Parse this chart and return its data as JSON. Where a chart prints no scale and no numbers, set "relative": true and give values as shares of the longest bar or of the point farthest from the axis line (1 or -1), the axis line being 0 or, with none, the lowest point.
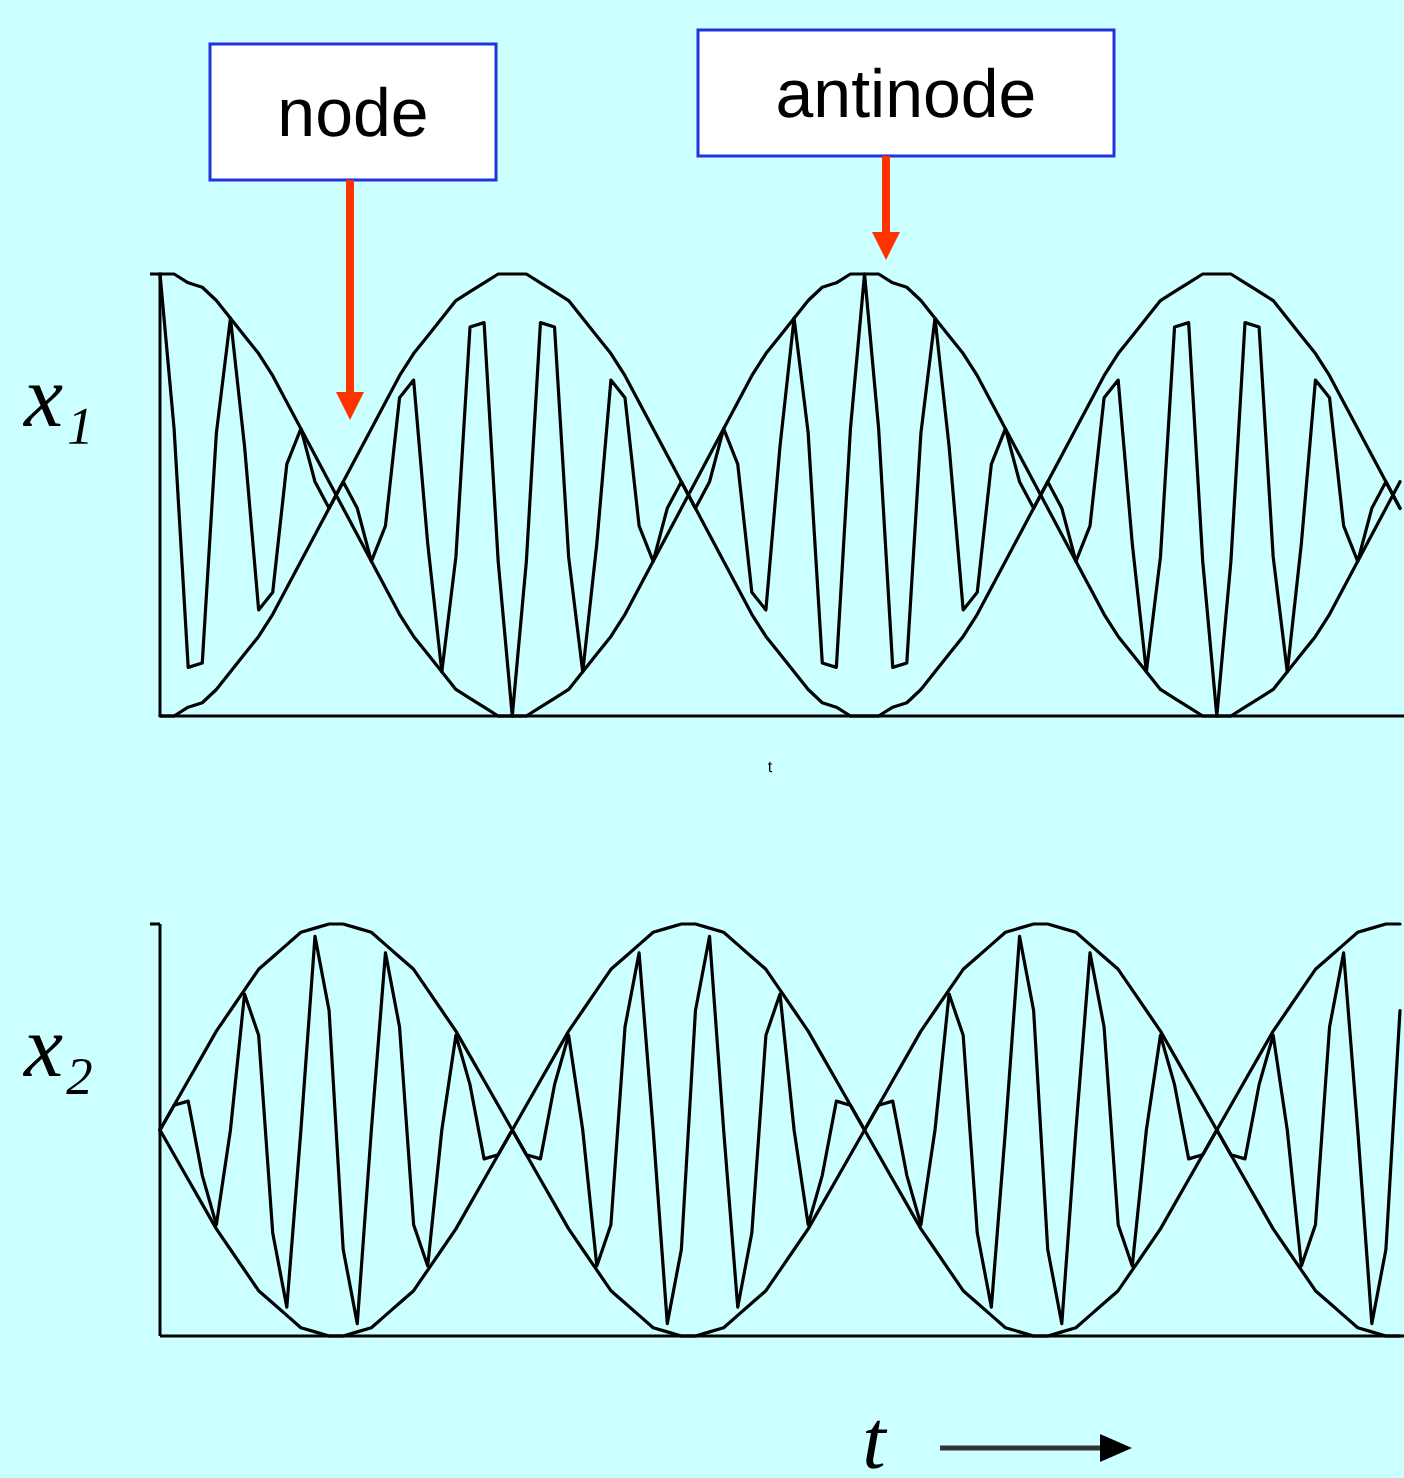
{
  "chart_data": [
    {
      "type": "line",
      "relative": true,
      "ylabel": "x₁",
      "xlabel": "t",
      "annotations": [
        "node",
        "antinode"
      ],
      "categories": [
        null,
        null,
        null,
        null,
        null,
        null,
        null,
        null,
        null,
        null,
        null,
        null,
        null,
        null,
        null,
        null,
        null,
        null,
        null,
        null,
        null,
        null,
        null,
        null,
        null,
        null,
        null,
        null,
        null,
        null,
        null,
        null,
        null,
        null,
        null,
        null,
        null,
        null,
        null,
        null,
        null,
        null,
        null,
        null,
        null,
        null,
        null,
        null,
        null,
        null,
        null,
        null,
        null,
        null,
        null,
        null,
        null,
        null,
        null,
        null,
        null,
        null,
        null,
        null,
        null,
        null,
        null,
        null,
        null,
        null,
        null,
        null,
        null,
        null,
        null,
        null,
        null,
        null,
        null,
        null,
        null,
        null,
        null,
        null,
        null,
        null,
        null,
        null,
        null
      ],
      "series": [
        {
          "color": "#000000",
          "values": [
            1.0,
            0.65,
            0.11,
            0.12,
            0.64,
            0.9,
            0.61,
            0.24,
            0.28,
            0.57,
            0.65,
            0.53,
            0.47,
            0.53,
            0.47,
            0.35,
            0.43,
            0.72,
            0.76,
            0.39,
            0.1,
            0.36,
            0.88,
            0.89,
            0.35,
            0.0,
            0.35,
            0.89,
            0.88,
            0.36,
            0.1,
            0.39,
            0.76,
            0.72,
            0.43,
            0.35,
            0.47,
            0.53,
            0.47,
            0.53,
            0.65,
            0.57,
            0.28,
            0.24,
            0.61,
            0.9,
            0.64,
            0.12,
            0.11,
            0.65,
            1.0,
            0.65,
            0.11,
            0.12,
            0.64,
            0.9,
            0.61,
            0.24,
            0.28,
            0.57,
            0.65,
            0.53,
            0.47,
            0.53,
            0.47,
            0.35,
            0.43,
            0.72,
            0.76,
            0.39,
            0.1,
            0.36,
            0.88,
            0.89,
            0.35,
            0.0,
            0.35,
            0.89,
            0.88,
            0.36,
            0.1,
            0.39,
            0.76,
            0.72,
            0.43,
            0.35,
            0.47,
            0.53,
            0.47
          ]
        },
        {
          "color": "#000000",
          "values": [
            1.0,
            1.0,
            0.98,
            0.97,
            0.94,
            0.9,
            0.86,
            0.82,
            0.77,
            0.71,
            0.65,
            0.59,
            0.53,
            0.47,
            0.41,
            0.35,
            0.29,
            0.23,
            0.18,
            0.14,
            0.1,
            0.06,
            0.04,
            0.02,
            0.0,
            0.0,
            0.0,
            0.02,
            0.04,
            0.06,
            0.1,
            0.14,
            0.18,
            0.23,
            0.29,
            0.35,
            0.41,
            0.47,
            0.53,
            0.59,
            0.65,
            0.71,
            0.77,
            0.82,
            0.86,
            0.9,
            0.94,
            0.97,
            0.98,
            1.0,
            1.0,
            1.0,
            0.98,
            0.97,
            0.94,
            0.9,
            0.86,
            0.82,
            0.77,
            0.71,
            0.65,
            0.59,
            0.53,
            0.47,
            0.41,
            0.35,
            0.29,
            0.23,
            0.18,
            0.14,
            0.1,
            0.06,
            0.04,
            0.02,
            0.0,
            0.0,
            0.0,
            0.02,
            0.04,
            0.06,
            0.1,
            0.14,
            0.18,
            0.23,
            0.29,
            0.35,
            0.41,
            0.47,
            0.53
          ]
        },
        {
          "color": "#000000",
          "values": [
            0.0,
            0.0,
            0.02,
            0.03,
            0.06,
            0.1,
            0.14,
            0.18,
            0.23,
            0.29,
            0.35,
            0.41,
            0.47,
            0.53,
            0.59,
            0.65,
            0.71,
            0.77,
            0.82,
            0.86,
            0.9,
            0.94,
            0.96,
            0.98,
            1.0,
            1.0,
            1.0,
            0.98,
            0.96,
            0.94,
            0.9,
            0.86,
            0.82,
            0.77,
            0.71,
            0.65,
            0.59,
            0.53,
            0.47,
            0.41,
            0.35,
            0.29,
            0.23,
            0.18,
            0.14,
            0.1,
            0.06,
            0.03,
            0.02,
            0.0,
            0.0,
            0.0,
            0.02,
            0.03,
            0.06,
            0.1,
            0.14,
            0.18,
            0.23,
            0.29,
            0.35,
            0.41,
            0.47,
            0.53,
            0.59,
            0.65,
            0.71,
            0.77,
            0.82,
            0.86,
            0.9,
            0.94,
            0.96,
            0.98,
            1.0,
            1.0,
            1.0,
            0.98,
            0.96,
            0.94,
            0.9,
            0.86,
            0.82,
            0.77,
            0.71,
            0.65,
            0.59,
            0.53,
            0.47
          ]
        }
      ]
    },
    {
      "type": "line",
      "relative": true,
      "ylabel": "x₂",
      "xlabel": "t",
      "categories": [
        null,
        null,
        null,
        null,
        null,
        null,
        null,
        null,
        null,
        null,
        null,
        null,
        null,
        null,
        null,
        null,
        null,
        null,
        null,
        null,
        null,
        null,
        null,
        null,
        null,
        null,
        null,
        null,
        null,
        null,
        null,
        null,
        null,
        null,
        null,
        null,
        null,
        null,
        null,
        null,
        null,
        null,
        null,
        null,
        null,
        null,
        null,
        null,
        null,
        null,
        null,
        null,
        null,
        null,
        null,
        null,
        null,
        null,
        null,
        null,
        null,
        null,
        null,
        null,
        null,
        null,
        null,
        null,
        null,
        null,
        null,
        null,
        null,
        null,
        null,
        null,
        null,
        null,
        null,
        null,
        null,
        null,
        null,
        null,
        null,
        null,
        null,
        null,
        null
      ],
      "series": [
        {
          "color": "#000000",
          "values": [
            0.5,
            0.56,
            0.57,
            0.39,
            0.27,
            0.5,
            0.83,
            0.73,
            0.25,
            0.07,
            0.5,
            0.97,
            0.79,
            0.21,
            0.03,
            0.5,
            0.93,
            0.75,
            0.27,
            0.17,
            0.5,
            0.73,
            0.61,
            0.43,
            0.44,
            0.5,
            0.44,
            0.43,
            0.61,
            0.73,
            0.5,
            0.17,
            0.27,
            0.75,
            0.93,
            0.5,
            0.03,
            0.21,
            0.79,
            0.97,
            0.5,
            0.07,
            0.25,
            0.73,
            0.83,
            0.5,
            0.27,
            0.39,
            0.57,
            0.56,
            0.5,
            0.56,
            0.57,
            0.39,
            0.27,
            0.5,
            0.83,
            0.73,
            0.25,
            0.07,
            0.5,
            0.97,
            0.79,
            0.21,
            0.03,
            0.5,
            0.93,
            0.75,
            0.27,
            0.17,
            0.5,
            0.73,
            0.61,
            0.43,
            0.44,
            0.5,
            0.44,
            0.43,
            0.61,
            0.73,
            0.5,
            0.17,
            0.27,
            0.75,
            0.93,
            0.5,
            0.03,
            0.21,
            0.79
          ]
        },
        {
          "color": "#000000",
          "values": [
            0.5,
            0.56,
            0.62,
            0.68,
            0.74,
            0.79,
            0.84,
            0.89,
            0.92,
            0.95,
            0.98,
            0.99,
            1.0,
            1.0,
            0.99,
            0.98,
            0.95,
            0.92,
            0.89,
            0.84,
            0.79,
            0.74,
            0.68,
            0.62,
            0.56,
            0.5,
            0.44,
            0.38,
            0.32,
            0.26,
            0.21,
            0.16,
            0.11,
            0.08,
            0.05,
            0.02,
            0.01,
            0.0,
            0.0,
            0.01,
            0.02,
            0.05,
            0.08,
            0.11,
            0.16,
            0.21,
            0.26,
            0.32,
            0.38,
            0.44,
            0.5,
            0.56,
            0.62,
            0.68,
            0.74,
            0.79,
            0.84,
            0.89,
            0.92,
            0.95,
            0.98,
            0.99,
            1.0,
            1.0,
            0.99,
            0.98,
            0.95,
            0.92,
            0.89,
            0.84,
            0.79,
            0.74,
            0.68,
            0.62,
            0.56,
            0.5,
            0.44,
            0.38,
            0.32,
            0.26,
            0.21,
            0.16,
            0.11,
            0.08,
            0.05,
            0.02,
            0.01,
            0.0,
            0.0
          ]
        },
        {
          "color": "#000000",
          "values": [
            0.5,
            0.44,
            0.38,
            0.32,
            0.26,
            0.21,
            0.16,
            0.11,
            0.08,
            0.05,
            0.02,
            0.01,
            0.0,
            0.0,
            0.01,
            0.02,
            0.05,
            0.08,
            0.11,
            0.16,
            0.21,
            0.26,
            0.32,
            0.38,
            0.44,
            0.5,
            0.56,
            0.62,
            0.68,
            0.74,
            0.79,
            0.84,
            0.89,
            0.92,
            0.95,
            0.98,
            0.99,
            1.0,
            1.0,
            0.99,
            0.98,
            0.95,
            0.92,
            0.89,
            0.84,
            0.79,
            0.74,
            0.68,
            0.62,
            0.56,
            0.5,
            0.44,
            0.38,
            0.32,
            0.26,
            0.21,
            0.16,
            0.11,
            0.08,
            0.05,
            0.02,
            0.01,
            0.0,
            0.0,
            0.01,
            0.02,
            0.05,
            0.08,
            0.11,
            0.16,
            0.21,
            0.26,
            0.32,
            0.38,
            0.44,
            0.5,
            0.56,
            0.62,
            0.68,
            0.74,
            0.79,
            0.84,
            0.89,
            0.92,
            0.95,
            0.98,
            0.99,
            1.0,
            1.0
          ]
        }
      ]
    }
  ]
}
